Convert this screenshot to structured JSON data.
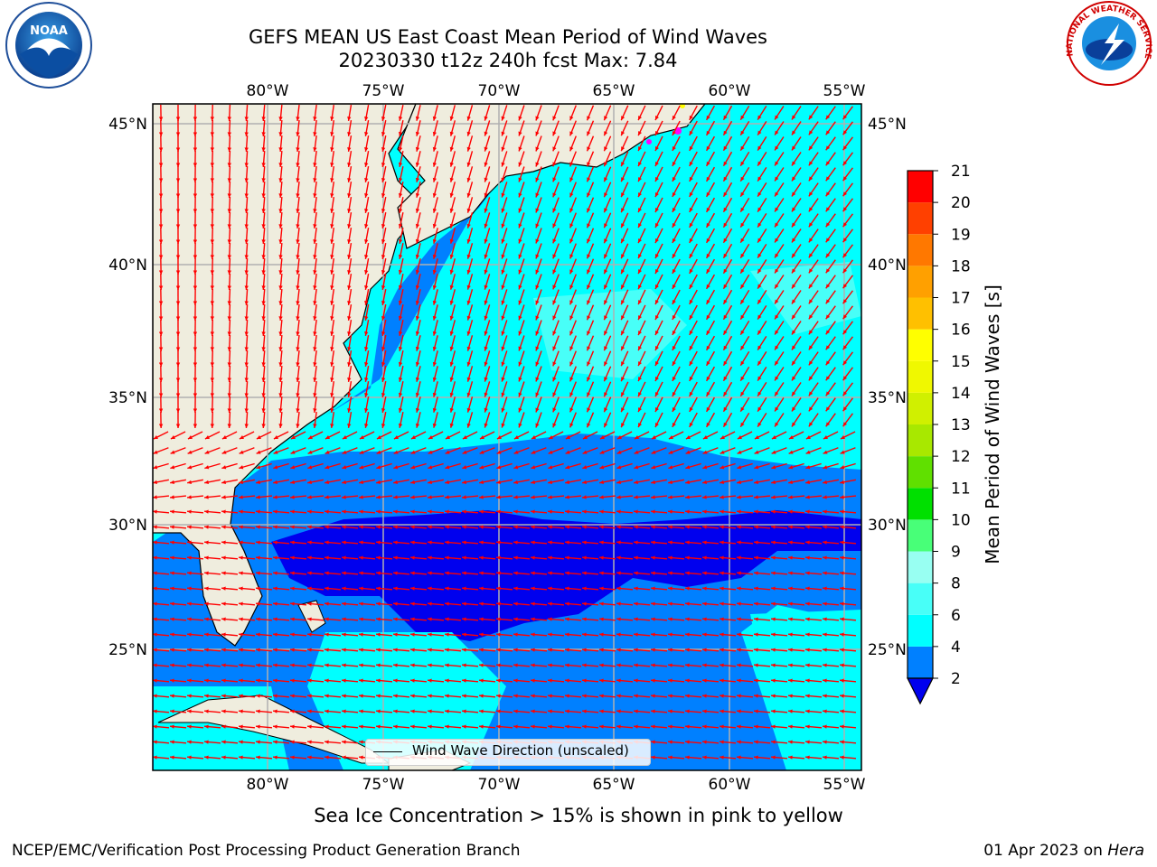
{
  "title": {
    "line1": "GEFS MEAN US East Coast Mean Period of Wind Waves",
    "line2": "20230330 t12z 240h fcst   Max: 7.84"
  },
  "map": {
    "lon_labels": [
      "80°W",
      "75°W",
      "70°W",
      "65°W",
      "60°W",
      "55°W"
    ],
    "lat_labels": [
      "45°N",
      "40°N",
      "35°N",
      "30°N",
      "25°N"
    ],
    "extent": {
      "lon": [
        -85,
        -54.3
      ],
      "lat": [
        20,
        46
      ]
    },
    "gridlines": true,
    "arrow_color": "#ff0000",
    "land_color": "#efedde"
  },
  "legend": {
    "label": "Wind Wave Direction (unscaled)"
  },
  "colorbar": {
    "title": "Mean Period of Wind Waves [s]",
    "ticks": [
      "2",
      "4",
      "6",
      "8",
      "9",
      "10",
      "11",
      "12",
      "13",
      "14",
      "15",
      "16",
      "17",
      "18",
      "19",
      "20",
      "21"
    ],
    "colors": [
      "#0000ee",
      "#0080ff",
      "#00ffff",
      "#48fff8",
      "#98fff2",
      "#48ff78",
      "#00e000",
      "#60e000",
      "#a8e800",
      "#d0f000",
      "#f0f800",
      "#ffff00",
      "#ffc000",
      "#ffa000",
      "#ff7800",
      "#ff4000",
      "#ff0000"
    ],
    "extend": "min"
  },
  "ice_note": "Sea Ice Concentration > 15% is shown in pink to yellow",
  "footer": {
    "left": "NCEP/EMC/Verification Post Processing Product Generation Branch",
    "date": "01 Apr 2023 on ",
    "host": "Hera"
  },
  "logos": {
    "left": "NOAA",
    "right": "NATIONAL WEATHER SERVICE"
  }
}
